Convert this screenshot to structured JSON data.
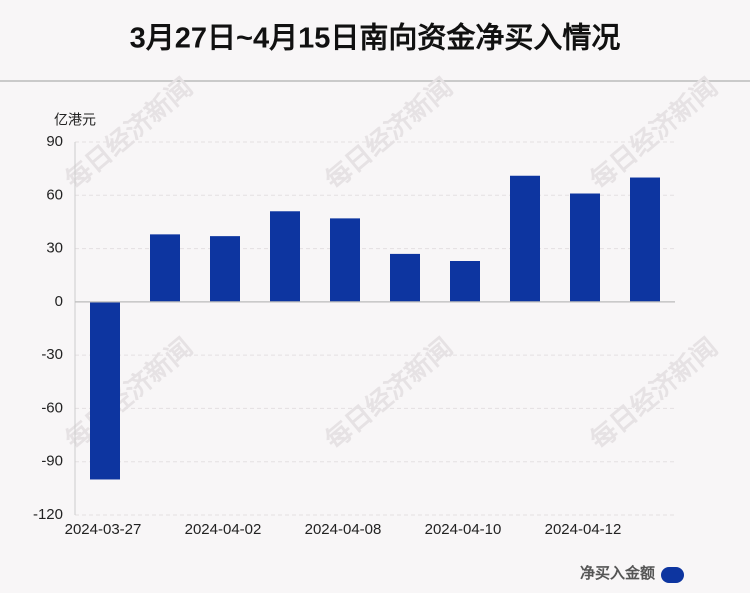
{
  "chart_data": {
    "type": "bar",
    "title": "3月27日~4月15日南向资金净买入情况",
    "y_axis_label": "亿港元",
    "watermark": "每日经济新闻",
    "categories": [
      "2024-03-27",
      null,
      "2024-04-02",
      null,
      "2024-04-08",
      null,
      "2024-04-10",
      null,
      "2024-04-12",
      null
    ],
    "series": [
      {
        "name": "净买入金额",
        "color": "#0d35a0",
        "values": [
          -100,
          38,
          37,
          51,
          47,
          27,
          23,
          71,
          61,
          70
        ]
      }
    ],
    "ylim": [
      -120,
      90
    ],
    "yticks": [
      -120,
      -90,
      -60,
      -30,
      0,
      30,
      60,
      90
    ],
    "grid": true,
    "legend": "bottom-right"
  }
}
